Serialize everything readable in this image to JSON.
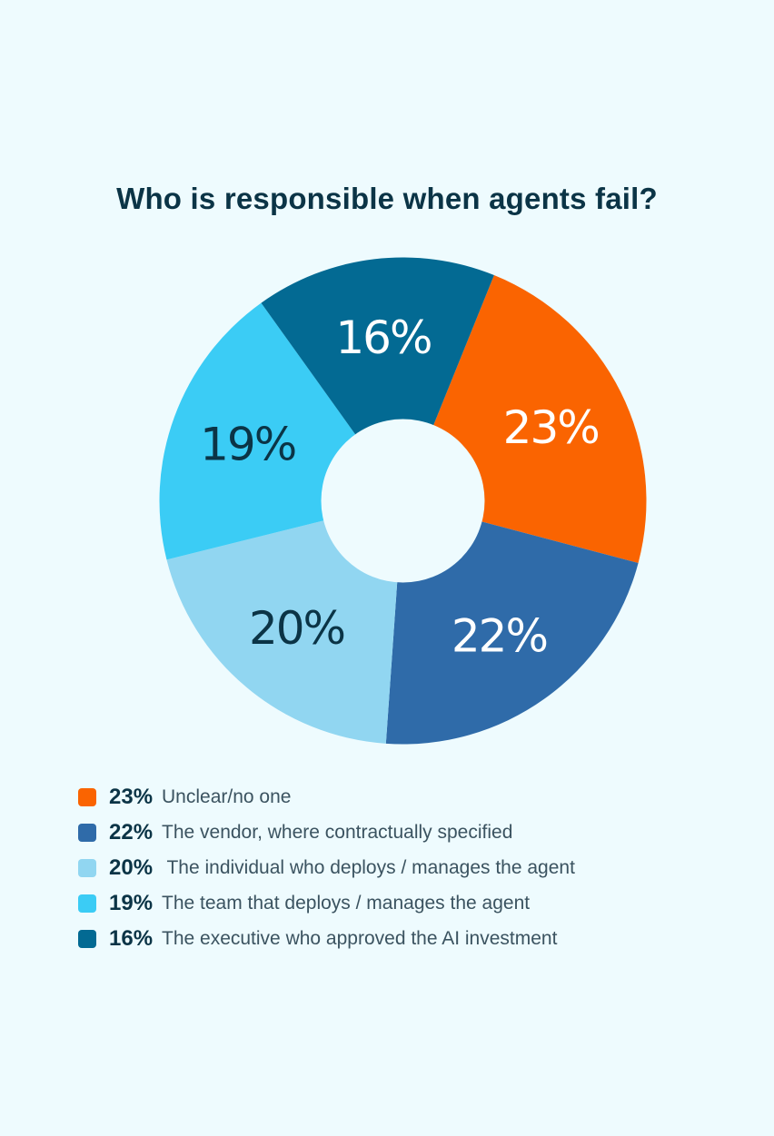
{
  "chart_data": {
    "type": "pie",
    "title": "Who is responsible when agents fail?",
    "series": [
      {
        "value": 23,
        "slice_label": "23%",
        "legend_pct": "23%",
        "legend_text": "Unclear/no one",
        "color": "#fa6401",
        "label_color": "#ffffff"
      },
      {
        "value": 22,
        "slice_label": "22%",
        "legend_pct": "22%",
        "legend_text": "The vendor, where contractually specified",
        "color": "#2f6ba9",
        "label_color": "#ffffff"
      },
      {
        "value": 20,
        "slice_label": "20%",
        "legend_pct": "20%",
        "legend_text": " The individual who deploys / manages the agent",
        "color": "#91d6f1",
        "label_color": "#0b3446"
      },
      {
        "value": 19,
        "slice_label": "19%",
        "legend_pct": "19%",
        "legend_text": "The team that deploys / manages the agent",
        "color": "#3bccf5",
        "label_color": "#0b3446"
      },
      {
        "value": 16,
        "slice_label": "16%",
        "legend_pct": "16%",
        "legend_text": "The executive who approved the AI investment",
        "color": "#036a93",
        "label_color": "#ffffff"
      }
    ]
  }
}
